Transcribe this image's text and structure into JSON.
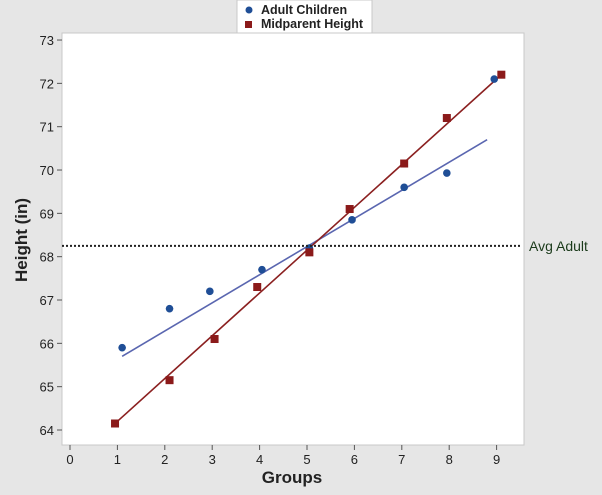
{
  "chart_data": {
    "type": "scatter",
    "title": "",
    "xlabel": "Groups",
    "ylabel": "Height (in)",
    "xlim": [
      0,
      9
    ],
    "ylim": [
      64,
      73
    ],
    "xticks": [
      "0",
      "1",
      "2",
      "3",
      "4",
      "5",
      "6",
      "7",
      "8",
      "9"
    ],
    "yticks": [
      "64",
      "65",
      "66",
      "67",
      "68",
      "69",
      "70",
      "71",
      "72",
      "73"
    ],
    "legend_position": "top-center",
    "series": [
      {
        "name": "Adult Children",
        "marker": "circle",
        "color": "#1f4e96",
        "x": [
          1.1,
          2.1,
          2.95,
          4.05,
          5.05,
          5.95,
          7.05,
          7.95,
          8.95
        ],
        "y": [
          65.9,
          66.8,
          67.2,
          67.7,
          68.2,
          68.85,
          69.6,
          69.93,
          72.1
        ],
        "fit": {
          "color": "#5a66b0",
          "x": [
            1.1,
            8.8
          ],
          "y": [
            65.7,
            70.7
          ]
        }
      },
      {
        "name": "Midparent Height",
        "marker": "square",
        "color": "#8b1a1a",
        "x": [
          0.95,
          2.1,
          3.05,
          3.95,
          5.05,
          5.9,
          7.05,
          7.95,
          9.1
        ],
        "y": [
          64.15,
          65.15,
          66.1,
          67.3,
          68.1,
          69.1,
          70.15,
          71.2,
          72.2
        ],
        "fit": {
          "color": "#8b2020",
          "x": [
            1.0,
            9.0
          ],
          "y": [
            64.2,
            72.1
          ]
        }
      }
    ],
    "reference_line": {
      "label": "Avg Adult",
      "y": 68.25,
      "style": "dotted",
      "color": "#222222"
    }
  }
}
